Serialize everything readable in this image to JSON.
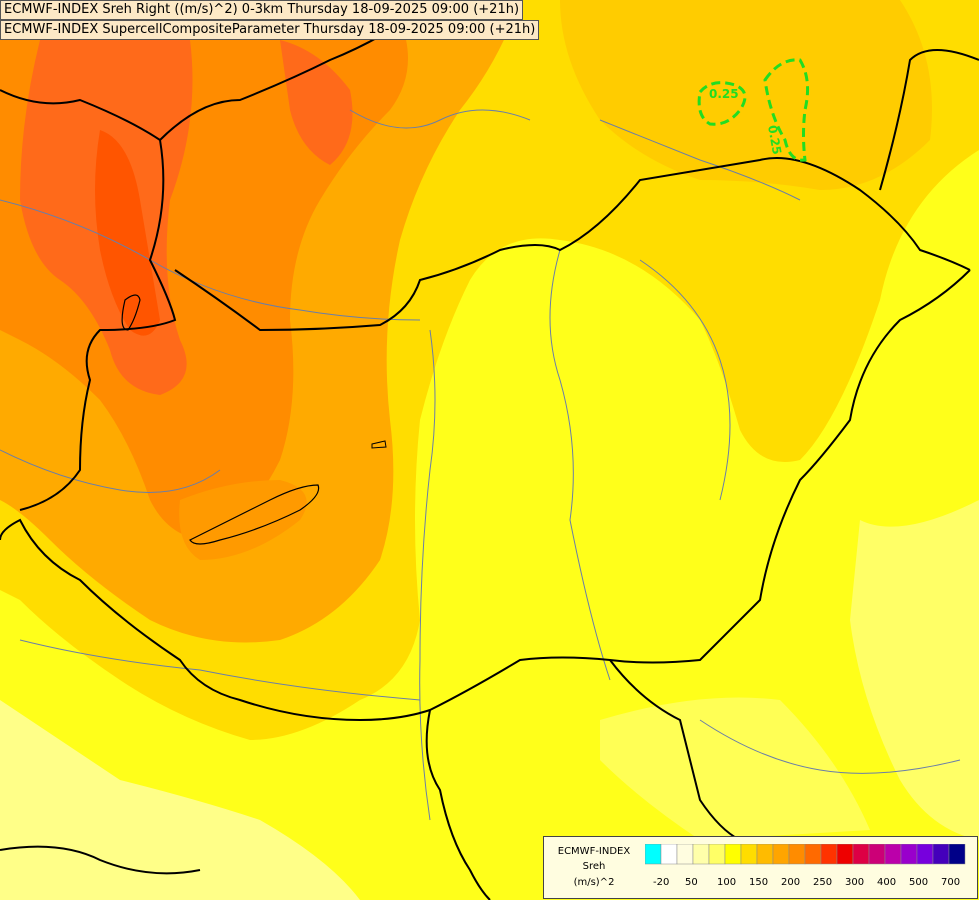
{
  "header": {
    "line1": "ECMWF-INDEX Sreh Right ((m/s)^2) 0-3km Thursday 18-09-2025 09:00 (+21h)",
    "line2": "ECMWF-INDEX SupercellCompositeParameter Thursday 18-09-2025 09:00 (+21h)"
  },
  "contours": {
    "scp_label_1": "0.25",
    "scp_label_2": "0.25",
    "color": "#22dd22"
  },
  "legend": {
    "line1": "ECMWF-INDEX",
    "line2": "Sreh",
    "line3": "(m/s)^2",
    "ticks": [
      "-20",
      "50",
      "100",
      "150",
      "200",
      "250",
      "300",
      "400",
      "500",
      "700"
    ],
    "colors": [
      "#00ffff",
      "#ffffff",
      "#fffde0",
      "#ffffaa",
      "#ffff66",
      "#ffff00",
      "#ffdd00",
      "#ffbb00",
      "#ffa500",
      "#ff8c00",
      "#ff6a00",
      "#ff3300",
      "#ee0000",
      "#dd0044",
      "#cc0077",
      "#bb00aa",
      "#9900cc",
      "#7700dd",
      "#4400bb",
      "#000088"
    ]
  }
}
